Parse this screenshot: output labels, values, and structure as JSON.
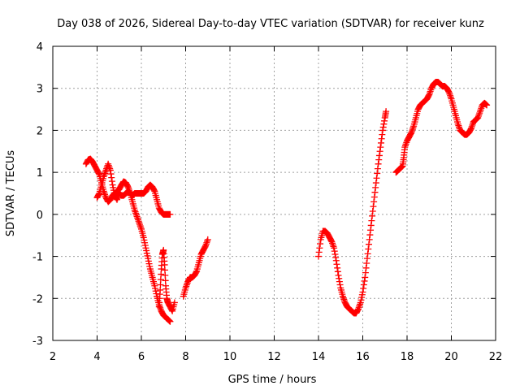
{
  "chart_data": {
    "type": "scatter",
    "title": "Day 038 of 2026, Sidereal Day-to-day VTEC variation (SDTVAR) for receiver kunz",
    "xlabel": "GPS time / hours",
    "ylabel": "SDTVAR / TECUs",
    "xlim": [
      2,
      22
    ],
    "ylim": [
      -3,
      4
    ],
    "xticks": [
      2,
      4,
      6,
      8,
      10,
      12,
      14,
      16,
      18,
      20,
      22
    ],
    "yticks": [
      -3,
      -2,
      -1,
      0,
      1,
      2,
      3,
      4
    ],
    "grid": true,
    "marker": "plus",
    "color": "#ff0000",
    "series": [
      {
        "name": "SDTVAR",
        "segments": [
          [
            [
              3.5,
              1.2
            ],
            [
              3.6,
              1.3
            ],
            [
              3.7,
              1.32
            ],
            [
              3.8,
              1.25
            ],
            [
              3.9,
              1.15
            ],
            [
              4.0,
              1.05
            ],
            [
              4.1,
              0.95
            ],
            [
              4.2,
              0.75
            ],
            [
              4.3,
              0.55
            ],
            [
              4.4,
              0.4
            ],
            [
              4.5,
              0.3
            ],
            [
              4.6,
              0.35
            ],
            [
              4.7,
              0.45
            ],
            [
              4.8,
              0.5
            ],
            [
              4.9,
              0.55
            ],
            [
              5.0,
              0.6
            ],
            [
              5.1,
              0.7
            ],
            [
              5.2,
              0.78
            ],
            [
              5.3,
              0.75
            ],
            [
              5.4,
              0.65
            ],
            [
              5.5,
              0.5
            ],
            [
              5.6,
              0.3
            ],
            [
              5.7,
              0.1
            ],
            [
              5.8,
              -0.05
            ],
            [
              5.9,
              -0.2
            ],
            [
              6.0,
              -0.35
            ],
            [
              6.1,
              -0.55
            ],
            [
              6.2,
              -0.8
            ],
            [
              6.3,
              -1.05
            ],
            [
              6.4,
              -1.3
            ],
            [
              6.5,
              -1.5
            ],
            [
              6.6,
              -1.7
            ],
            [
              6.7,
              -1.95
            ],
            [
              6.8,
              -2.15
            ],
            [
              6.9,
              -2.3
            ],
            [
              7.0,
              -2.4
            ],
            [
              7.1,
              -2.45
            ],
            [
              7.2,
              -2.5
            ],
            [
              7.3,
              -2.55
            ]
          ],
          [
            [
              4.0,
              0.4
            ],
            [
              4.1,
              0.5
            ],
            [
              4.2,
              0.7
            ],
            [
              4.3,
              0.9
            ],
            [
              4.4,
              1.05
            ],
            [
              4.5,
              1.2
            ],
            [
              4.6,
              1.05
            ],
            [
              4.7,
              0.7
            ],
            [
              4.8,
              0.45
            ],
            [
              4.9,
              0.35
            ],
            [
              5.0,
              0.5
            ],
            [
              5.1,
              0.45
            ],
            [
              5.2,
              0.45
            ],
            [
              5.3,
              0.5
            ],
            [
              5.4,
              0.55
            ],
            [
              5.5,
              0.5
            ],
            [
              5.6,
              0.45
            ],
            [
              5.7,
              0.5
            ],
            [
              5.8,
              0.5
            ],
            [
              5.9,
              0.5
            ],
            [
              6.0,
              0.5
            ],
            [
              6.1,
              0.5
            ],
            [
              6.2,
              0.55
            ],
            [
              6.3,
              0.65
            ],
            [
              6.4,
              0.7
            ],
            [
              6.5,
              0.65
            ],
            [
              6.6,
              0.55
            ],
            [
              6.7,
              0.35
            ],
            [
              6.8,
              0.15
            ],
            [
              6.9,
              0.05
            ],
            [
              7.0,
              0.0
            ],
            [
              7.1,
              0.0
            ],
            [
              7.2,
              0.0
            ],
            [
              7.3,
              0.0
            ]
          ],
          [
            [
              6.8,
              -2.2
            ],
            [
              6.85,
              -1.8
            ],
            [
              6.9,
              -1.3
            ],
            [
              6.95,
              -0.95
            ],
            [
              7.0,
              -0.85
            ],
            [
              7.05,
              -1.2
            ],
            [
              7.1,
              -1.7
            ],
            [
              7.15,
              -2.0
            ],
            [
              7.2,
              -2.1
            ],
            [
              7.3,
              -2.2
            ],
            [
              7.4,
              -2.3
            ],
            [
              7.5,
              -2.1
            ]
          ],
          [
            [
              7.9,
              -1.95
            ],
            [
              8.0,
              -1.75
            ],
            [
              8.1,
              -1.6
            ],
            [
              8.2,
              -1.5
            ],
            [
              8.3,
              -1.5
            ],
            [
              8.4,
              -1.45
            ],
            [
              8.5,
              -1.35
            ],
            [
              8.6,
              -1.15
            ],
            [
              8.7,
              -0.95
            ],
            [
              8.8,
              -0.85
            ],
            [
              8.9,
              -0.75
            ],
            [
              9.0,
              -0.6
            ]
          ],
          [
            [
              14.0,
              -1.0
            ],
            [
              14.1,
              -0.6
            ],
            [
              14.2,
              -0.4
            ],
            [
              14.3,
              -0.4
            ],
            [
              14.4,
              -0.45
            ],
            [
              14.5,
              -0.55
            ],
            [
              14.6,
              -0.65
            ],
            [
              14.7,
              -0.8
            ],
            [
              14.8,
              -1.1
            ],
            [
              14.9,
              -1.45
            ],
            [
              15.0,
              -1.75
            ],
            [
              15.1,
              -1.95
            ],
            [
              15.2,
              -2.1
            ],
            [
              15.3,
              -2.2
            ],
            [
              15.4,
              -2.25
            ],
            [
              15.5,
              -2.3
            ],
            [
              15.6,
              -2.35
            ],
            [
              15.7,
              -2.35
            ],
            [
              15.8,
              -2.25
            ],
            [
              15.9,
              -2.1
            ],
            [
              16.0,
              -1.85
            ],
            [
              16.1,
              -1.5
            ],
            [
              16.2,
              -1.05
            ],
            [
              16.3,
              -0.6
            ],
            [
              16.4,
              -0.15
            ],
            [
              16.5,
              0.3
            ],
            [
              16.6,
              0.75
            ],
            [
              16.7,
              1.2
            ],
            [
              16.8,
              1.6
            ],
            [
              16.9,
              2.0
            ],
            [
              17.0,
              2.3
            ],
            [
              17.05,
              2.45
            ]
          ],
          [
            [
              17.5,
              1.0
            ],
            [
              17.6,
              1.05
            ],
            [
              17.7,
              1.1
            ],
            [
              17.8,
              1.15
            ],
            [
              17.85,
              1.35
            ],
            [
              17.9,
              1.6
            ],
            [
              18.0,
              1.75
            ],
            [
              18.1,
              1.85
            ],
            [
              18.2,
              1.95
            ],
            [
              18.3,
              2.1
            ],
            [
              18.4,
              2.3
            ],
            [
              18.5,
              2.5
            ],
            [
              18.6,
              2.6
            ],
            [
              18.7,
              2.65
            ],
            [
              18.8,
              2.7
            ],
            [
              18.9,
              2.75
            ],
            [
              19.0,
              2.85
            ],
            [
              19.1,
              3.0
            ],
            [
              19.2,
              3.1
            ],
            [
              19.3,
              3.15
            ],
            [
              19.4,
              3.15
            ],
            [
              19.5,
              3.1
            ],
            [
              19.6,
              3.05
            ],
            [
              19.7,
              3.05
            ],
            [
              19.8,
              3.0
            ],
            [
              19.9,
              2.9
            ],
            [
              20.0,
              2.75
            ],
            [
              20.1,
              2.55
            ],
            [
              20.2,
              2.35
            ],
            [
              20.3,
              2.15
            ],
            [
              20.4,
              2.0
            ],
            [
              20.5,
              1.95
            ],
            [
              20.6,
              1.9
            ],
            [
              20.7,
              1.9
            ],
            [
              20.8,
              1.95
            ],
            [
              20.9,
              2.05
            ],
            [
              21.0,
              2.2
            ],
            [
              21.1,
              2.25
            ],
            [
              21.2,
              2.3
            ],
            [
              21.3,
              2.45
            ],
            [
              21.4,
              2.6
            ],
            [
              21.5,
              2.65
            ],
            [
              21.6,
              2.6
            ]
          ]
        ]
      }
    ]
  }
}
